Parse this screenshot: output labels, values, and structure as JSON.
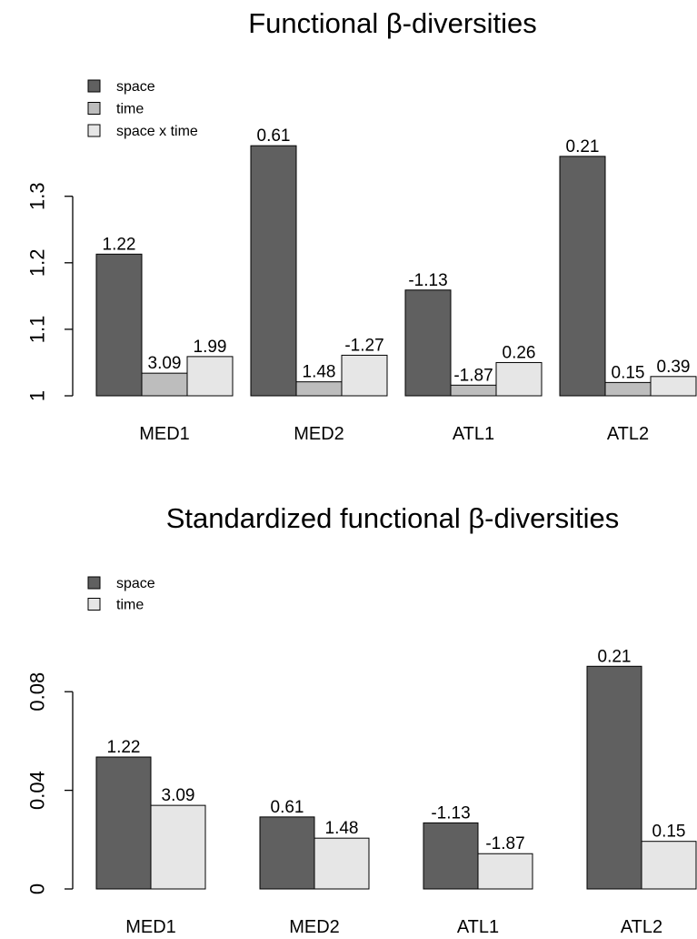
{
  "chart_data": [
    {
      "type": "bar",
      "title": "Functional β-diversities",
      "categories": [
        "MED1",
        "MED2",
        "ATL1",
        "ATL2"
      ],
      "series": [
        {
          "name": "space",
          "values": [
            1.213,
            1.376,
            1.159,
            1.36
          ],
          "labels": [
            "1.22",
            "0.61",
            "-1.13",
            "0.21"
          ]
        },
        {
          "name": "time",
          "values": [
            1.034,
            1.021,
            1.016,
            1.02
          ],
          "labels": [
            "3.09",
            "1.48",
            "-1.87",
            "0.15"
          ]
        },
        {
          "name": "space x time",
          "values": [
            1.059,
            1.061,
            1.05,
            1.029
          ],
          "labels": [
            "1.99",
            "-1.27",
            "0.26",
            "0.39"
          ]
        }
      ],
      "ylim": [
        1.0,
        1.42
      ],
      "yticks": [
        1.0,
        1.1,
        1.2,
        1.3
      ],
      "ytick_labels": [
        "1",
        "1.1",
        "1.2",
        "1.3"
      ],
      "xlabel": "",
      "ylabel": "",
      "legend_position": "top-left",
      "grid": false
    },
    {
      "type": "bar",
      "title": "Standardized functional β-diversities",
      "categories": [
        "MED1",
        "MED2",
        "ATL1",
        "ATL2"
      ],
      "series": [
        {
          "name": "space",
          "values": [
            0.0535,
            0.0292,
            0.0268,
            0.0903
          ],
          "labels": [
            "1.22",
            "0.61",
            "-1.13",
            "0.21"
          ]
        },
        {
          "name": "time",
          "values": [
            0.0339,
            0.0206,
            0.0143,
            0.0193
          ],
          "labels": [
            "3.09",
            "1.48",
            "-1.87",
            "0.15"
          ]
        }
      ],
      "ylim": [
        0,
        0.1
      ],
      "yticks": [
        0,
        0.04,
        0.08
      ],
      "ytick_labels": [
        "0",
        "0.04",
        "0.08"
      ],
      "xlabel": "",
      "ylabel": "",
      "legend_position": "top-left",
      "grid": false
    }
  ],
  "colors": {
    "space": "#606060",
    "time_top": "#bdbdbd",
    "time_bottom": "#e6e6e6",
    "space_x_time": "#e6e6e6",
    "text": "#000000",
    "background": "#ffffff"
  }
}
